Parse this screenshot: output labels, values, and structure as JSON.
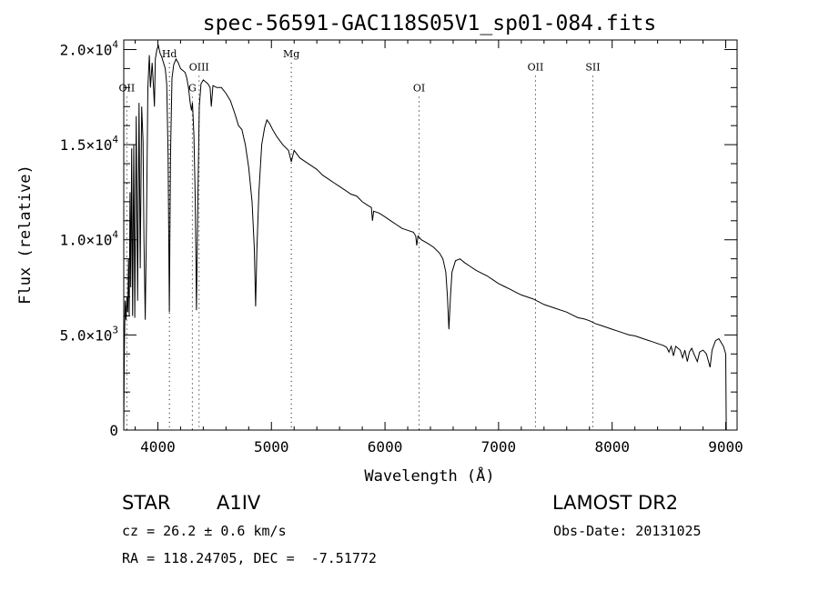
{
  "chart_data": {
    "type": "line",
    "title": "spec-56591-GAC118S05V1_sp01-084.fits",
    "xlabel": "Wavelength (Å)",
    "ylabel": "Flux (relative)",
    "xlim": [
      3700,
      9100
    ],
    "ylim": [
      0,
      20500
    ],
    "x_ticks": [
      4000,
      5000,
      6000,
      7000,
      8000,
      9000
    ],
    "x_tick_labels": [
      "4000",
      "5000",
      "6000",
      "7000",
      "8000",
      "9000"
    ],
    "y_ticks": [
      0,
      5000,
      10000,
      15000,
      20000
    ],
    "y_tick_labels": [
      {
        "mantissa": "0",
        "exp": ""
      },
      {
        "mantissa": "5.0×10",
        "exp": "3"
      },
      {
        "mantissa": "1.0×10",
        "exp": "4"
      },
      {
        "mantissa": "1.5×10",
        "exp": "4"
      },
      {
        "mantissa": "2.0×10",
        "exp": "4"
      }
    ],
    "grid": false,
    "line_color": "#000000",
    "line_markers": [
      {
        "label": "OII",
        "wavelength": 3727,
        "label_flux": 17800
      },
      {
        "label": "Hd",
        "wavelength": 4102,
        "label_flux": 19600
      },
      {
        "label": "G",
        "wavelength": 4304,
        "label_flux": 17800
      },
      {
        "label": "OIII",
        "wavelength": 4363,
        "label_flux": 18900
      },
      {
        "label": "Mg",
        "wavelength": 5175,
        "label_flux": 19600
      },
      {
        "label": "OI",
        "wavelength": 6300,
        "label_flux": 17800
      },
      {
        "label": "OII",
        "wavelength": 7325,
        "label_flux": 18900
      },
      {
        "label": "SII",
        "wavelength": 7830,
        "label_flux": 18900
      }
    ],
    "series": [
      {
        "points": [
          [
            3700,
            0
          ],
          [
            3705,
            4000
          ],
          [
            3712,
            6800
          ],
          [
            3720,
            5800
          ],
          [
            3728,
            7000
          ],
          [
            3735,
            6200
          ],
          [
            3742,
            9000
          ],
          [
            3748,
            6000
          ],
          [
            3755,
            12500
          ],
          [
            3762,
            7500
          ],
          [
            3770,
            14800
          ],
          [
            3778,
            6000
          ],
          [
            3788,
            15000
          ],
          [
            3797,
            5900
          ],
          [
            3810,
            16500
          ],
          [
            3822,
            6800
          ],
          [
            3835,
            17200
          ],
          [
            3845,
            8500
          ],
          [
            3858,
            17000
          ],
          [
            3870,
            15200
          ],
          [
            3878,
            10000
          ],
          [
            3889,
            5800
          ],
          [
            3900,
            11000
          ],
          [
            3912,
            18000
          ],
          [
            3925,
            19700
          ],
          [
            3935,
            18000
          ],
          [
            3950,
            19300
          ],
          [
            3962,
            18000
          ],
          [
            3970,
            17000
          ],
          [
            3978,
            19500
          ],
          [
            3992,
            20000
          ],
          [
            4005,
            20200
          ],
          [
            4020,
            19800
          ],
          [
            4035,
            19600
          ],
          [
            4050,
            19300
          ],
          [
            4065,
            19000
          ],
          [
            4078,
            18200
          ],
          [
            4090,
            14500
          ],
          [
            4101,
            6200
          ],
          [
            4112,
            14500
          ],
          [
            4125,
            18500
          ],
          [
            4140,
            19200
          ],
          [
            4160,
            19500
          ],
          [
            4180,
            19300
          ],
          [
            4200,
            19000
          ],
          [
            4220,
            18900
          ],
          [
            4240,
            18800
          ],
          [
            4255,
            18500
          ],
          [
            4270,
            18000
          ],
          [
            4285,
            17200
          ],
          [
            4296,
            16800
          ],
          [
            4305,
            17200
          ],
          [
            4318,
            15500
          ],
          [
            4330,
            12000
          ],
          [
            4340,
            6300
          ],
          [
            4352,
            12000
          ],
          [
            4365,
            17000
          ],
          [
            4380,
            18200
          ],
          [
            4400,
            18400
          ],
          [
            4420,
            18300
          ],
          [
            4440,
            18200
          ],
          [
            4460,
            18000
          ],
          [
            4471,
            17000
          ],
          [
            4485,
            18100
          ],
          [
            4520,
            18000
          ],
          [
            4560,
            18000
          ],
          [
            4600,
            17700
          ],
          [
            4640,
            17300
          ],
          [
            4680,
            16600
          ],
          [
            4710,
            16000
          ],
          [
            4740,
            15800
          ],
          [
            4770,
            15000
          ],
          [
            4800,
            13800
          ],
          [
            4830,
            12000
          ],
          [
            4850,
            9500
          ],
          [
            4861,
            6500
          ],
          [
            4872,
            9500
          ],
          [
            4890,
            12500
          ],
          [
            4915,
            15000
          ],
          [
            4940,
            15900
          ],
          [
            4960,
            16300
          ],
          [
            4985,
            16100
          ],
          [
            5010,
            15800
          ],
          [
            5050,
            15400
          ],
          [
            5100,
            15000
          ],
          [
            5150,
            14700
          ],
          [
            5175,
            14100
          ],
          [
            5200,
            14700
          ],
          [
            5250,
            14300
          ],
          [
            5300,
            14100
          ],
          [
            5350,
            13900
          ],
          [
            5400,
            13700
          ],
          [
            5450,
            13400
          ],
          [
            5500,
            13200
          ],
          [
            5550,
            13000
          ],
          [
            5600,
            12800
          ],
          [
            5650,
            12600
          ],
          [
            5700,
            12400
          ],
          [
            5750,
            12300
          ],
          [
            5800,
            12000
          ],
          [
            5850,
            11800
          ],
          [
            5880,
            11700
          ],
          [
            5890,
            11000
          ],
          [
            5900,
            11500
          ],
          [
            5950,
            11400
          ],
          [
            6000,
            11200
          ],
          [
            6050,
            11000
          ],
          [
            6100,
            10800
          ],
          [
            6150,
            10600
          ],
          [
            6200,
            10500
          ],
          [
            6250,
            10400
          ],
          [
            6270,
            10200
          ],
          [
            6280,
            9700
          ],
          [
            6290,
            10200
          ],
          [
            6320,
            10000
          ],
          [
            6380,
            9800
          ],
          [
            6430,
            9600
          ],
          [
            6480,
            9300
          ],
          [
            6510,
            9000
          ],
          [
            6535,
            8300
          ],
          [
            6550,
            7000
          ],
          [
            6563,
            5300
          ],
          [
            6576,
            7000
          ],
          [
            6590,
            8300
          ],
          [
            6620,
            8900
          ],
          [
            6660,
            9000
          ],
          [
            6700,
            8800
          ],
          [
            6750,
            8600
          ],
          [
            6800,
            8400
          ],
          [
            6850,
            8250
          ],
          [
            6900,
            8100
          ],
          [
            6950,
            7900
          ],
          [
            7000,
            7700
          ],
          [
            7050,
            7550
          ],
          [
            7100,
            7400
          ],
          [
            7150,
            7250
          ],
          [
            7200,
            7100
          ],
          [
            7250,
            7000
          ],
          [
            7300,
            6900
          ],
          [
            7350,
            6750
          ],
          [
            7400,
            6600
          ],
          [
            7450,
            6500
          ],
          [
            7500,
            6400
          ],
          [
            7550,
            6300
          ],
          [
            7600,
            6200
          ],
          [
            7650,
            6050
          ],
          [
            7700,
            5900
          ],
          [
            7750,
            5850
          ],
          [
            7800,
            5750
          ],
          [
            7850,
            5600
          ],
          [
            7900,
            5500
          ],
          [
            7950,
            5400
          ],
          [
            8000,
            5300
          ],
          [
            8050,
            5200
          ],
          [
            8100,
            5100
          ],
          [
            8150,
            5000
          ],
          [
            8200,
            4950
          ],
          [
            8250,
            4850
          ],
          [
            8300,
            4750
          ],
          [
            8350,
            4650
          ],
          [
            8400,
            4550
          ],
          [
            8450,
            4450
          ],
          [
            8480,
            4350
          ],
          [
            8500,
            4100
          ],
          [
            8520,
            4400
          ],
          [
            8540,
            3900
          ],
          [
            8560,
            4400
          ],
          [
            8580,
            4300
          ],
          [
            8600,
            4200
          ],
          [
            8620,
            3800
          ],
          [
            8640,
            4200
          ],
          [
            8662,
            3600
          ],
          [
            8680,
            4100
          ],
          [
            8700,
            4300
          ],
          [
            8720,
            4000
          ],
          [
            8750,
            3600
          ],
          [
            8770,
            4100
          ],
          [
            8800,
            4200
          ],
          [
            8830,
            4000
          ],
          [
            8862,
            3300
          ],
          [
            8880,
            4200
          ],
          [
            8910,
            4700
          ],
          [
            8940,
            4800
          ],
          [
            8960,
            4600
          ],
          [
            8980,
            4400
          ],
          [
            9000,
            4000
          ],
          [
            9005,
            0
          ]
        ]
      }
    ]
  },
  "info": {
    "object_class": "STAR",
    "subclass": "A1IV",
    "survey": "LAMOST DR2",
    "redshift_line": "cz = 26.2 ± 0.6 km/s",
    "obs_date_line": "Obs-Date: 20131025",
    "coords_line": "RA = 118.24705, DEC =  -7.51772"
  }
}
